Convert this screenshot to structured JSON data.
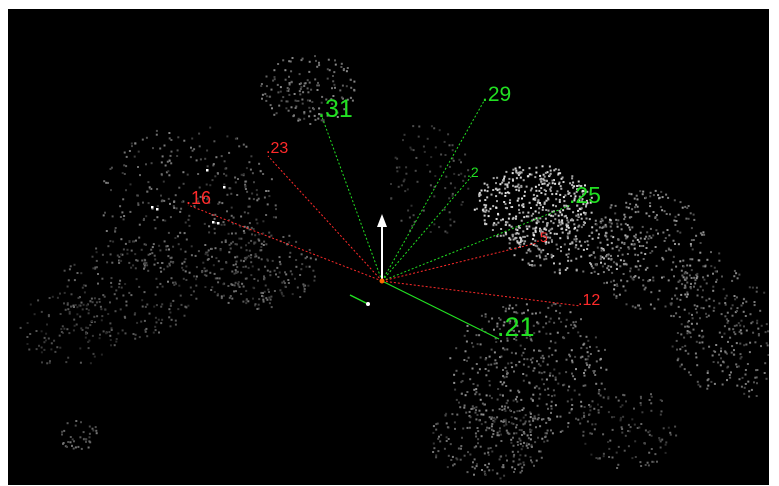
{
  "viewer": {
    "background_color": "#000000",
    "origin_color": "#ff6a00",
    "up_arrow_color": "#ffffff"
  },
  "rays": [
    {
      "label": ".31",
      "color": "#22e022",
      "style": "dotted"
    },
    {
      "label": ".29",
      "color": "#22e022",
      "style": "dotted"
    },
    {
      "label": ".2",
      "color": "#22e022",
      "style": "dotted"
    },
    {
      "label": ".25",
      "color": "#22e022",
      "style": "dotted"
    },
    {
      "label": ".21",
      "color": "#22e022",
      "style": "solid"
    },
    {
      "label": ".23",
      "color": "#ff2a2a",
      "style": "dotted"
    },
    {
      "label": ".16",
      "color": "#ff2a2a",
      "style": "dotted"
    },
    {
      "label": ".5",
      "color": "#ff2a2a",
      "style": "dotted"
    },
    {
      "label": ".12",
      "color": "#ff2a2a",
      "style": "dotted"
    }
  ]
}
